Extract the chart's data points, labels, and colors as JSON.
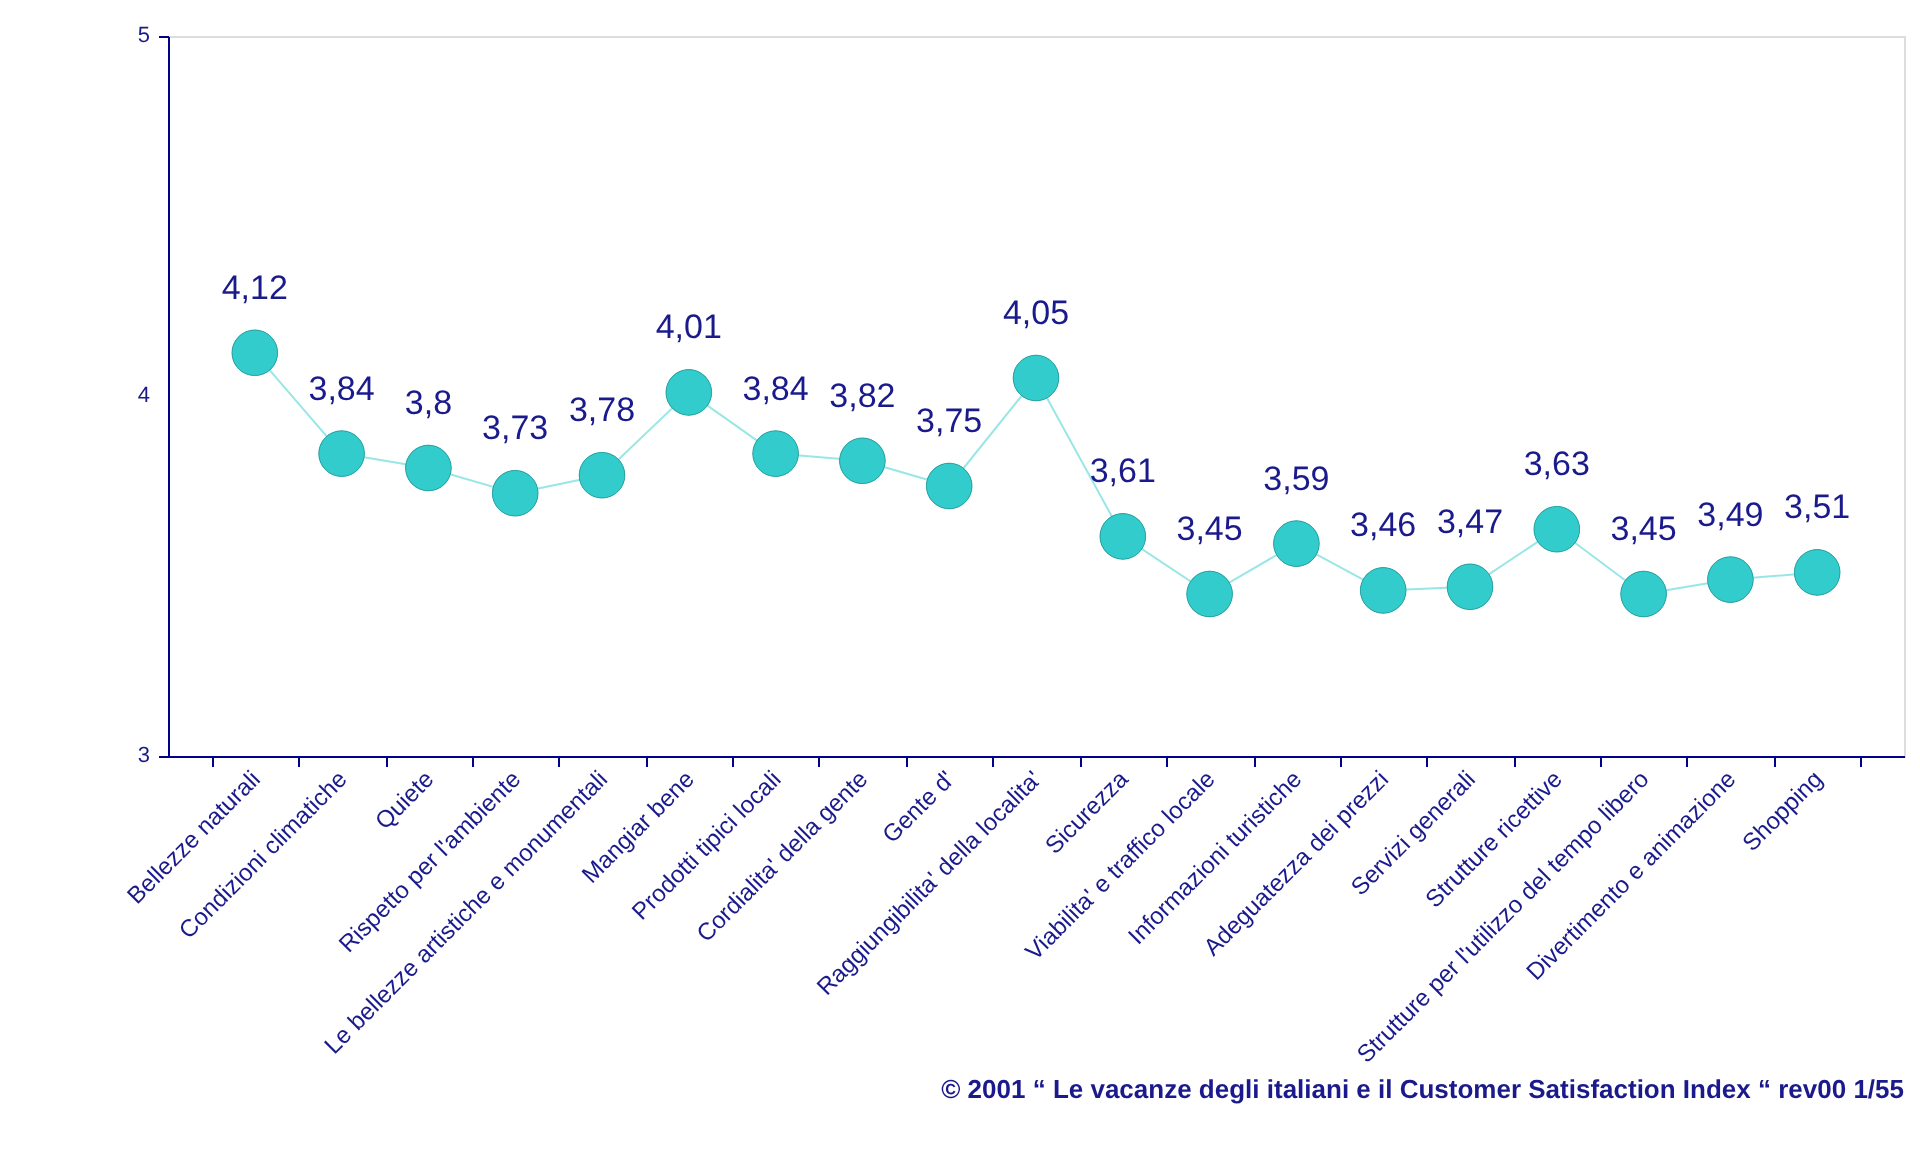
{
  "chart_data": {
    "type": "line",
    "categories": [
      "Bellezze naturali",
      "Condizioni climatiche",
      "Quiete",
      "Rispetto per l'ambiente",
      "Le bellezze artistiche e monumentali",
      "Mangiar bene",
      "Prodotti tipici locali",
      "Cordialita' della gente",
      "Gente d'",
      "Raggiungibilita' della localita'",
      "Sicurezza",
      "Viabilita' e traffico locale",
      "Informazioni turistiche",
      "Adeguatezza dei prezzi",
      "Servizi generali",
      "Strutture ricettive",
      "Strutture per l'utilizzo del tempo libero",
      "Divertimento e animazione",
      "Shopping"
    ],
    "series": [
      {
        "color": "#33cccc",
        "values": [
          4.12,
          3.84,
          3.8,
          3.73,
          3.78,
          4.01,
          3.84,
          3.82,
          3.75,
          4.05,
          3.61,
          3.45,
          3.59,
          3.46,
          3.47,
          3.63,
          3.45,
          3.49,
          3.51
        ],
        "value_labels": [
          "4,12",
          "3,84",
          "3,8",
          "3,73",
          "3,78",
          "4,01",
          "3,84",
          "3,82",
          "3,75",
          "4,05",
          "3,61",
          "3,45",
          "3,59",
          "3,46",
          "3,47",
          "3,63",
          "3,45",
          "3,49",
          "3,51"
        ]
      }
    ],
    "ylim": [
      3,
      5
    ],
    "yticks": [
      3,
      4,
      5
    ],
    "grid": false,
    "marker": "circle",
    "line_style": "solid",
    "annotations": [
      "© 2001 “ Le vacanze degli italiani e il Customer Satisfaction Index “ rev00 1/55"
    ]
  }
}
